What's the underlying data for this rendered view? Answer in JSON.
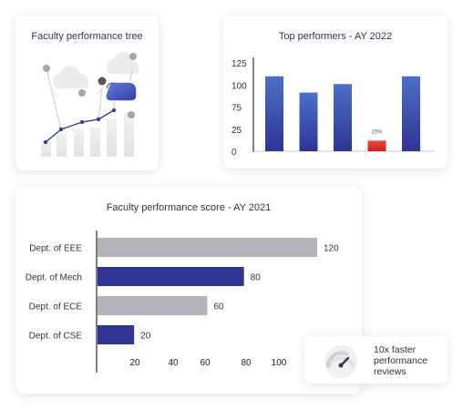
{
  "tree_card": {
    "title": "Faculty performance tree"
  },
  "top_performers": {
    "chart_data": {
      "type": "bar",
      "title": "Top performers - AY 2022",
      "categories": [
        "",
        "",
        "",
        "",
        ""
      ],
      "values": [
        106,
        83,
        95,
        15,
        106
      ],
      "highlight_index": 3,
      "highlight_label": "20%",
      "y_ticks": [
        "125",
        "100",
        "75",
        "25",
        "0"
      ],
      "ylim": [
        0,
        125
      ],
      "colors": {
        "bar": "#3b4fae",
        "highlight": "#e5352b"
      }
    }
  },
  "faculty_score": {
    "chart_data": {
      "type": "bar",
      "orientation": "horizontal",
      "title": "Faculty performance score - AY 2021",
      "categories": [
        "Dept. of EEE",
        "Dept. of Mech",
        "Dept. of ECE",
        "Dept. of CSE"
      ],
      "values": [
        120,
        80,
        60,
        20
      ],
      "value_labels": [
        "120",
        "80",
        "60",
        "20"
      ],
      "bar_colors": [
        "#b3b3ba",
        "#2f3495",
        "#b3b3ba",
        "#2f3495"
      ],
      "x_ticks": [
        "20",
        "40",
        "60",
        "80",
        "100"
      ],
      "xlim": [
        0,
        120
      ]
    }
  },
  "badge": {
    "text": "10x faster performance reviews",
    "icon": "speedometer-icon"
  }
}
